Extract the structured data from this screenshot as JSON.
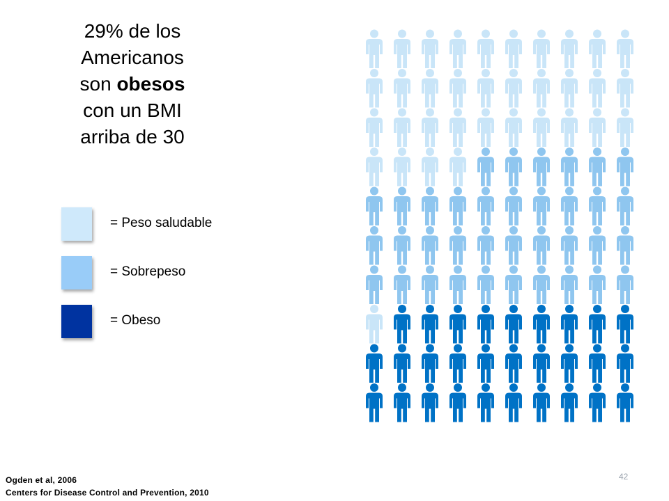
{
  "title": {
    "line1": "29% de los",
    "line2": "Americanos",
    "line3_pre": "son ",
    "line3_bold": "obesos",
    "line4": "con un BMI",
    "line5": "arriba de 30"
  },
  "legend": [
    {
      "label": "= Peso saludable",
      "color": "#cfe9fb"
    },
    {
      "label": "= Sobrepeso",
      "color": "#99ccf8"
    },
    {
      "label": "= Obeso",
      "color": "#0033a0"
    }
  ],
  "people_chart": {
    "columns": 10,
    "rows": 10,
    "rows_from_top": [
      [
        "healthy",
        "healthy",
        "healthy",
        "healthy",
        "healthy",
        "healthy",
        "healthy",
        "healthy",
        "healthy",
        "healthy"
      ],
      [
        "healthy",
        "healthy",
        "healthy",
        "healthy",
        "healthy",
        "healthy",
        "healthy",
        "healthy",
        "healthy",
        "healthy"
      ],
      [
        "healthy",
        "healthy",
        "healthy",
        "healthy",
        "healthy",
        "healthy",
        "healthy",
        "healthy",
        "healthy",
        "healthy"
      ],
      [
        "healthy",
        "healthy",
        "healthy",
        "healthy",
        "overweight",
        "overweight",
        "overweight",
        "overweight",
        "overweight",
        "overweight"
      ],
      [
        "overweight",
        "overweight",
        "overweight",
        "overweight",
        "overweight",
        "overweight",
        "overweight",
        "overweight",
        "overweight",
        "overweight"
      ],
      [
        "overweight",
        "overweight",
        "overweight",
        "overweight",
        "overweight",
        "overweight",
        "overweight",
        "overweight",
        "overweight",
        "overweight"
      ],
      [
        "overweight",
        "overweight",
        "overweight",
        "overweight",
        "overweight",
        "overweight",
        "overweight",
        "overweight",
        "overweight",
        "overweight"
      ],
      [
        "healthy",
        "obese",
        "obese",
        "obese",
        "obese",
        "obese",
        "obese",
        "obese",
        "obese",
        "obese"
      ],
      [
        "obese",
        "obese",
        "obese",
        "obese",
        "obese",
        "obese",
        "obese",
        "obese",
        "obese",
        "obese"
      ],
      [
        "obese",
        "obese",
        "obese",
        "obese",
        "obese",
        "obese",
        "obese",
        "obese",
        "obese",
        "obese"
      ]
    ],
    "colors": {
      "healthy": "#c9e5f8",
      "overweight": "#8fc6ef",
      "obese": "#0072c6"
    }
  },
  "footer": {
    "line1": "Ogden et al, 2006",
    "line2": "Centers for Disease Control and Prevention, 2010"
  },
  "page_number": "42"
}
